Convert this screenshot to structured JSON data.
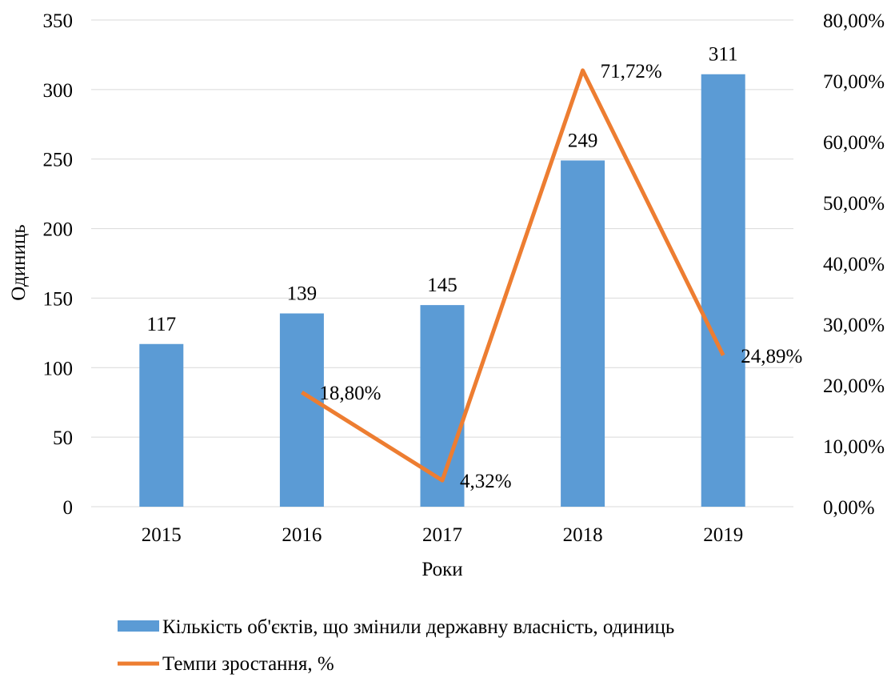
{
  "chart_data": {
    "type": "bar",
    "title": "",
    "xlabel": "Роки",
    "ylabel": "Одиниць",
    "categories": [
      "2015",
      "2016",
      "2017",
      "2018",
      "2019"
    ],
    "ylim": [
      0,
      350
    ],
    "y2lim": [
      0,
      0.8
    ],
    "yticks": [
      0,
      50,
      100,
      150,
      200,
      250,
      300,
      350
    ],
    "y2ticks": [
      "0,00%",
      "10,00%",
      "20,00%",
      "30,00%",
      "40,00%",
      "50,00%",
      "60,00%",
      "70,00%",
      "80,00%"
    ],
    "grid": true,
    "legend_position": "bottom",
    "series": [
      {
        "name": "Кількість об'єктів, що змінили державну власність, одиниць",
        "type": "bar",
        "axis": "left",
        "color": "#5b9bd5",
        "values": [
          117,
          139,
          145,
          249,
          311
        ],
        "labels": [
          "117",
          "139",
          "145",
          "249",
          "311"
        ]
      },
      {
        "name": "Темпи зростання, %",
        "type": "line",
        "axis": "right",
        "color": "#ed7d31",
        "values": [
          null,
          0.188,
          0.0432,
          0.7172,
          0.2489
        ],
        "labels": [
          "",
          "18,80%",
          "4,32%",
          "71,72%",
          "24,89%"
        ]
      }
    ]
  }
}
